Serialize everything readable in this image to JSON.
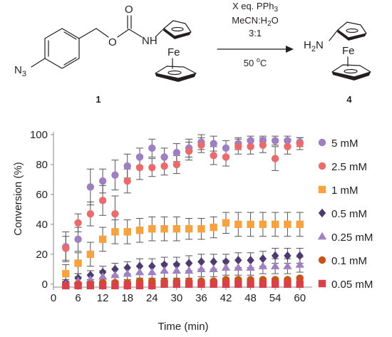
{
  "scheme": {
    "reactant_label": "1",
    "product_label": "4",
    "atoms": {
      "azide": "N",
      "azide_sub": "3",
      "oxygen_carbonyl": "O",
      "oxygen_ester": "O",
      "nh": "N",
      "nh_h": "H",
      "fe_reactant": "Fe",
      "fe_product": "Fe",
      "amine_h": "H",
      "amine_sub": "2",
      "amine_n": "N"
    },
    "conditions": {
      "line1": "X eq. PPh",
      "line1_sub": "3",
      "line2": "MeCN:H",
      "line2_sub": "2",
      "line2_end": "O",
      "line3": "3:1",
      "line4": "50 ",
      "line4_sup": "o",
      "line4_end": "C"
    }
  },
  "chart_data": {
    "type": "scatter",
    "xlabel": "Time (min)",
    "ylabel": "Conversion (%)",
    "xlim": [
      0,
      63
    ],
    "ylim": [
      -2,
      100
    ],
    "xticks": [
      0,
      6,
      12,
      18,
      24,
      30,
      36,
      42,
      48,
      54,
      60
    ],
    "yticks": [
      0,
      20,
      40,
      60,
      80,
      100
    ],
    "error_bars": true,
    "grid": false,
    "legend_position": "right",
    "series": [
      {
        "name": "5 mM",
        "color": "#9e7fc1",
        "marker": "circle",
        "points": [
          [
            3,
            25,
            10
          ],
          [
            6,
            30,
            8
          ],
          [
            9,
            65,
            12
          ],
          [
            12,
            69,
            8
          ],
          [
            15,
            73,
            10
          ],
          [
            18,
            79,
            8
          ],
          [
            21,
            85,
            6
          ],
          [
            24,
            91,
            6
          ],
          [
            27,
            85,
            6
          ],
          [
            30,
            88,
            6
          ],
          [
            33,
            91,
            6
          ],
          [
            36,
            95,
            5
          ],
          [
            39,
            94,
            5
          ],
          [
            42,
            91,
            5
          ],
          [
            45,
            94,
            4
          ],
          [
            48,
            96,
            3
          ],
          [
            51,
            96,
            3
          ],
          [
            54,
            96,
            3
          ],
          [
            57,
            96,
            3
          ],
          [
            60,
            95,
            3
          ]
        ]
      },
      {
        "name": "2.5 mM",
        "color": "#e96b6b",
        "marker": "circle",
        "points": [
          [
            3,
            24,
            8
          ],
          [
            6,
            41,
            6
          ],
          [
            9,
            47,
            8
          ],
          [
            12,
            56,
            10
          ],
          [
            15,
            47,
            12
          ],
          [
            18,
            69,
            8
          ],
          [
            21,
            78,
            8
          ],
          [
            24,
            78,
            6
          ],
          [
            27,
            79,
            6
          ],
          [
            30,
            80,
            6
          ],
          [
            33,
            89,
            6
          ],
          [
            36,
            93,
            5
          ],
          [
            39,
            86,
            6
          ],
          [
            42,
            85,
            6
          ],
          [
            45,
            92,
            5
          ],
          [
            48,
            92,
            5
          ],
          [
            51,
            93,
            5
          ],
          [
            54,
            84,
            8
          ],
          [
            57,
            92,
            5
          ],
          [
            60,
            94,
            4
          ]
        ]
      },
      {
        "name": "1 mM",
        "color": "#f8a23f",
        "marker": "square",
        "points": [
          [
            3,
            7,
            6
          ],
          [
            6,
            14,
            7
          ],
          [
            9,
            20,
            8
          ],
          [
            12,
            30,
            8
          ],
          [
            15,
            35,
            8
          ],
          [
            18,
            35,
            8
          ],
          [
            21,
            36,
            8
          ],
          [
            24,
            37,
            8
          ],
          [
            27,
            37,
            8
          ],
          [
            30,
            37,
            8
          ],
          [
            33,
            37,
            7
          ],
          [
            36,
            37,
            7
          ],
          [
            39,
            38,
            7
          ],
          [
            42,
            41,
            7
          ],
          [
            45,
            40,
            8
          ],
          [
            48,
            40,
            8
          ],
          [
            51,
            40,
            8
          ],
          [
            54,
            40,
            8
          ],
          [
            57,
            40,
            8
          ],
          [
            60,
            40,
            8
          ]
        ]
      },
      {
        "name": "0.5 mM",
        "color": "#4d3a6f",
        "marker": "diamond",
        "points": [
          [
            3,
            1,
            2
          ],
          [
            6,
            4,
            3
          ],
          [
            9,
            6,
            3
          ],
          [
            12,
            8,
            4
          ],
          [
            15,
            10,
            4
          ],
          [
            18,
            11,
            4
          ],
          [
            21,
            12,
            5
          ],
          [
            24,
            12,
            5
          ],
          [
            27,
            13,
            5
          ],
          [
            30,
            13,
            5
          ],
          [
            33,
            14,
            5
          ],
          [
            36,
            15,
            5
          ],
          [
            39,
            15,
            5
          ],
          [
            42,
            15,
            5
          ],
          [
            45,
            16,
            5
          ],
          [
            48,
            16,
            5
          ],
          [
            51,
            17,
            5
          ],
          [
            54,
            19,
            5
          ],
          [
            57,
            19,
            5
          ],
          [
            60,
            19,
            5
          ]
        ]
      },
      {
        "name": "0.25 mM",
        "color": "#9f81c4",
        "marker": "triangle",
        "points": [
          [
            3,
            0,
            2
          ],
          [
            6,
            2,
            3
          ],
          [
            9,
            3,
            3
          ],
          [
            12,
            5,
            4
          ],
          [
            15,
            6,
            4
          ],
          [
            18,
            7,
            4
          ],
          [
            21,
            8,
            4
          ],
          [
            24,
            8,
            4
          ],
          [
            27,
            9,
            5
          ],
          [
            30,
            9,
            5
          ],
          [
            33,
            9,
            5
          ],
          [
            36,
            10,
            5
          ],
          [
            39,
            10,
            5
          ],
          [
            42,
            11,
            5
          ],
          [
            45,
            11,
            5
          ],
          [
            48,
            11,
            5
          ],
          [
            51,
            12,
            5
          ],
          [
            54,
            12,
            5
          ],
          [
            57,
            12,
            5
          ],
          [
            60,
            13,
            5
          ]
        ]
      },
      {
        "name": "0.1 mM",
        "color": "#c9541b",
        "marker": "circle",
        "points": [
          [
            3,
            -1,
            1
          ],
          [
            6,
            0,
            1
          ],
          [
            9,
            0,
            1
          ],
          [
            12,
            1,
            1
          ],
          [
            15,
            1,
            1
          ],
          [
            18,
            1,
            1
          ],
          [
            21,
            2,
            1
          ],
          [
            24,
            2,
            1
          ],
          [
            27,
            2,
            1
          ],
          [
            30,
            2,
            1
          ],
          [
            33,
            2,
            1
          ],
          [
            36,
            2,
            1
          ],
          [
            39,
            2,
            1
          ],
          [
            42,
            3,
            1
          ],
          [
            45,
            3,
            1
          ],
          [
            48,
            3,
            1
          ],
          [
            51,
            3,
            1
          ],
          [
            54,
            3,
            1
          ],
          [
            57,
            3,
            1
          ],
          [
            60,
            4,
            1
          ]
        ]
      },
      {
        "name": "0.05 mM",
        "color": "#d8404a",
        "marker": "square",
        "points": [
          [
            3,
            -1,
            1
          ],
          [
            6,
            -1,
            1
          ],
          [
            9,
            -1,
            1
          ],
          [
            12,
            -1,
            1
          ],
          [
            15,
            -1,
            1
          ],
          [
            18,
            -1,
            1
          ],
          [
            21,
            -1,
            1
          ],
          [
            24,
            -1,
            1
          ],
          [
            27,
            0,
            1
          ],
          [
            30,
            0,
            1
          ],
          [
            33,
            0,
            1
          ],
          [
            36,
            0,
            1
          ],
          [
            39,
            0,
            1
          ],
          [
            42,
            0,
            1
          ],
          [
            45,
            0,
            1
          ],
          [
            48,
            0,
            1
          ],
          [
            51,
            0,
            1
          ],
          [
            54,
            0,
            1
          ],
          [
            57,
            0,
            1
          ],
          [
            60,
            0,
            1
          ]
        ]
      }
    ]
  }
}
